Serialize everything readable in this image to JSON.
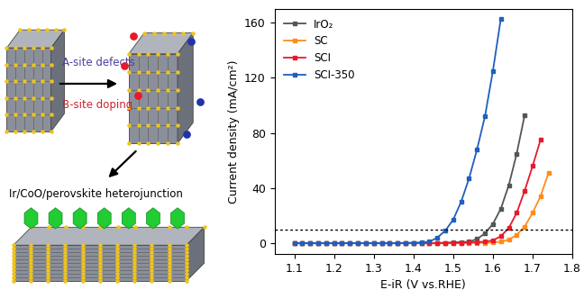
{
  "chart_data": {
    "type": "line",
    "x_label": "E-iR (V vs.RHE)",
    "y_label": "Current density (mA/cm²)",
    "x": [
      1.1,
      1.12,
      1.14,
      1.16,
      1.18,
      1.2,
      1.22,
      1.24,
      1.26,
      1.28,
      1.3,
      1.32,
      1.34,
      1.36,
      1.38,
      1.4,
      1.42,
      1.44,
      1.46,
      1.48,
      1.5,
      1.52,
      1.54,
      1.56,
      1.58,
      1.6,
      1.62,
      1.64,
      1.66,
      1.68,
      1.7,
      1.72,
      1.74
    ],
    "series": [
      {
        "name": "IrO₂",
        "color": "#555555",
        "marker": "square",
        "values": [
          0,
          0,
          0,
          0,
          0,
          0,
          0,
          0,
          0,
          0,
          0,
          0,
          0,
          0,
          0,
          0,
          0,
          0,
          0.2,
          0.3,
          0.5,
          0.8,
          1,
          3,
          7,
          14,
          25,
          42,
          65,
          93,
          null,
          null,
          null
        ]
      },
      {
        "name": "SC",
        "color": "#ff8c1a",
        "marker": "square",
        "values": [
          0,
          0,
          0,
          0,
          0,
          0,
          0,
          0,
          0,
          0,
          0,
          0,
          0,
          0,
          0,
          0,
          0,
          0,
          0,
          0,
          0,
          0,
          0.1,
          0.2,
          0.3,
          0.5,
          1,
          2.5,
          6,
          12,
          22,
          34,
          51
        ]
      },
      {
        "name": "SCI",
        "color": "#e8192c",
        "marker": "square",
        "values": [
          0,
          0,
          0,
          0,
          0,
          0,
          0,
          0,
          0,
          0,
          0,
          0,
          0,
          0,
          0,
          0,
          0,
          0,
          0,
          0.1,
          0.2,
          0.3,
          0.5,
          0.8,
          1,
          2,
          5,
          11,
          22,
          38,
          56,
          75,
          null
        ]
      },
      {
        "name": "SCI-350",
        "color": "#1f5fbf",
        "marker": "square",
        "values": [
          0,
          0,
          0,
          0,
          0,
          0,
          0,
          0,
          0,
          0,
          0,
          0,
          0,
          0,
          0.2,
          0.3,
          0.5,
          1,
          4,
          9,
          17,
          30,
          47,
          68,
          92,
          125,
          163,
          null,
          null,
          null,
          null,
          null,
          null
        ]
      }
    ],
    "hline": 10,
    "xlim": [
      1.05,
      1.8
    ],
    "xticks": [
      1.1,
      1.2,
      1.3,
      1.4,
      1.5,
      1.6,
      1.7,
      1.8
    ],
    "ylim": [
      -8,
      170
    ],
    "yticks": [
      0,
      40,
      80,
      120,
      160
    ],
    "legend": "upper left",
    "grid": false
  },
  "diagram": {
    "labels": {
      "a_site": "A-site defects",
      "b_site": "B-site doping",
      "heterojunction": "Ir/CoO/perovskite heterojunction"
    }
  }
}
